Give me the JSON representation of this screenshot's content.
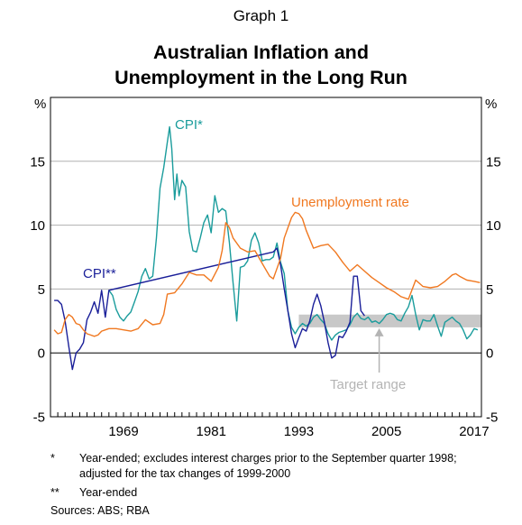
{
  "header": {
    "supertitle": "Graph 1",
    "title_line1": "Australian Inflation and",
    "title_line2": "Unemployment in the Long Run"
  },
  "colors": {
    "cpi_yearended_excl": "#1a9c9c",
    "cpi_yearended": "#1a1f99",
    "unemployment": "#f07820",
    "target_band": "#c8c8c8",
    "annotation": "#b4b4b4",
    "gridline": "#b0b0b0"
  },
  "chart_data": {
    "type": "line",
    "x_ticks": [
      "1969",
      "1981",
      "1993",
      "2005",
      "2017"
    ],
    "y_ticks": [
      "-5",
      "0",
      "5",
      "10",
      "15"
    ],
    "xlim": [
      1959,
      2018
    ],
    "ylim": [
      -5,
      20
    ],
    "left_unit": "%",
    "right_unit": "%",
    "grid": true,
    "target_band": {
      "low": 2,
      "high": 3,
      "from": 1993,
      "to": 2018
    },
    "annotations": {
      "cpi_star_label": "CPI*",
      "cpi_dstar_label": "CPI**",
      "unemp_label": "Unemployment rate",
      "target_label": "Target range"
    },
    "series": [
      {
        "name": "CPI*",
        "points": [
          [
            1967.0,
            4.9
          ],
          [
            1967.5,
            4.5
          ],
          [
            1968.0,
            3.4
          ],
          [
            1968.5,
            2.8
          ],
          [
            1969.0,
            2.5
          ],
          [
            1969.5,
            2.9
          ],
          [
            1970.0,
            3.2
          ],
          [
            1970.5,
            4.0
          ],
          [
            1971.0,
            4.8
          ],
          [
            1971.5,
            6.0
          ],
          [
            1972.0,
            6.6
          ],
          [
            1972.5,
            5.8
          ],
          [
            1973.0,
            6.0
          ],
          [
            1973.5,
            9.0
          ],
          [
            1974.0,
            12.9
          ],
          [
            1974.5,
            14.5
          ],
          [
            1975.0,
            16.5
          ],
          [
            1975.3,
            17.7
          ],
          [
            1975.6,
            16.0
          ],
          [
            1976.0,
            12.0
          ],
          [
            1976.3,
            14.0
          ],
          [
            1976.6,
            12.3
          ],
          [
            1977.0,
            13.5
          ],
          [
            1977.5,
            13.0
          ],
          [
            1978.0,
            9.5
          ],
          [
            1978.5,
            8.0
          ],
          [
            1979.0,
            7.9
          ],
          [
            1979.5,
            9.0
          ],
          [
            1980.0,
            10.2
          ],
          [
            1980.5,
            10.8
          ],
          [
            1981.0,
            9.4
          ],
          [
            1981.5,
            12.3
          ],
          [
            1982.0,
            11.0
          ],
          [
            1982.5,
            11.3
          ],
          [
            1983.0,
            11.1
          ],
          [
            1983.5,
            8.6
          ],
          [
            1984.0,
            5.5
          ],
          [
            1984.5,
            2.5
          ],
          [
            1985.0,
            6.7
          ],
          [
            1985.5,
            6.8
          ],
          [
            1986.0,
            7.2
          ],
          [
            1986.5,
            8.8
          ],
          [
            1987.0,
            9.4
          ],
          [
            1987.5,
            8.6
          ],
          [
            1988.0,
            7.2
          ],
          [
            1988.5,
            7.3
          ],
          [
            1989.0,
            7.3
          ],
          [
            1989.5,
            7.5
          ],
          [
            1990.0,
            8.6
          ],
          [
            1990.5,
            7.1
          ],
          [
            1991.0,
            6.2
          ],
          [
            1991.5,
            3.3
          ],
          [
            1992.0,
            2.0
          ],
          [
            1992.5,
            1.5
          ],
          [
            1993.0,
            2.0
          ],
          [
            1993.5,
            2.3
          ],
          [
            1994.0,
            2.1
          ],
          [
            1994.5,
            2.3
          ],
          [
            1995.0,
            2.8
          ],
          [
            1995.5,
            3.0
          ],
          [
            1996.0,
            2.6
          ],
          [
            1996.5,
            2.3
          ],
          [
            1997.0,
            1.5
          ],
          [
            1997.5,
            1.0
          ],
          [
            1998.0,
            1.4
          ],
          [
            1998.5,
            1.6
          ],
          [
            1999.0,
            1.7
          ],
          [
            1999.5,
            1.8
          ],
          [
            2000.0,
            2.2
          ],
          [
            2000.5,
            2.8
          ],
          [
            2001.0,
            3.1
          ],
          [
            2001.5,
            2.7
          ],
          [
            2002.0,
            2.6
          ],
          [
            2002.5,
            2.8
          ],
          [
            2003.0,
            2.4
          ],
          [
            2003.5,
            2.5
          ],
          [
            2004.0,
            2.3
          ],
          [
            2004.5,
            2.6
          ],
          [
            2005.0,
            3.0
          ],
          [
            2005.5,
            3.1
          ],
          [
            2006.0,
            3.0
          ],
          [
            2006.5,
            2.6
          ],
          [
            2007.0,
            2.5
          ],
          [
            2007.5,
            3.1
          ],
          [
            2008.0,
            3.6
          ],
          [
            2008.5,
            4.5
          ],
          [
            2009.0,
            3.0
          ],
          [
            2009.5,
            1.8
          ],
          [
            2010.0,
            2.6
          ],
          [
            2010.5,
            2.5
          ],
          [
            2011.0,
            2.5
          ],
          [
            2011.5,
            3.0
          ],
          [
            2012.0,
            2.1
          ],
          [
            2012.5,
            1.3
          ],
          [
            2013.0,
            2.4
          ],
          [
            2013.5,
            2.6
          ],
          [
            2014.0,
            2.8
          ],
          [
            2014.5,
            2.5
          ],
          [
            2015.0,
            2.3
          ],
          [
            2015.5,
            1.8
          ],
          [
            2016.0,
            1.1
          ],
          [
            2016.5,
            1.4
          ],
          [
            2017.0,
            1.9
          ],
          [
            2017.5,
            1.8
          ]
        ]
      },
      {
        "name": "CPI**",
        "points": [
          [
            1959.5,
            4.1
          ],
          [
            1960.0,
            4.1
          ],
          [
            1960.5,
            3.8
          ],
          [
            1961.0,
            2.5
          ],
          [
            1961.5,
            0.5
          ],
          [
            1962.0,
            -1.3
          ],
          [
            1962.5,
            0.0
          ],
          [
            1963.0,
            0.3
          ],
          [
            1963.5,
            0.8
          ],
          [
            1964.0,
            2.6
          ],
          [
            1964.5,
            3.2
          ],
          [
            1965.0,
            4.0
          ],
          [
            1965.5,
            3.1
          ],
          [
            1966.0,
            4.9
          ],
          [
            1966.5,
            2.8
          ],
          [
            1967.0,
            4.9
          ],
          [
            1989.5,
            7.9
          ],
          [
            1990.0,
            8.2
          ],
          [
            1990.5,
            6.9
          ],
          [
            1991.0,
            5.0
          ],
          [
            1991.5,
            3.3
          ],
          [
            1992.0,
            1.5
          ],
          [
            1992.5,
            0.4
          ],
          [
            1993.0,
            1.2
          ],
          [
            1993.5,
            1.9
          ],
          [
            1994.0,
            1.7
          ],
          [
            1994.5,
            2.5
          ],
          [
            1995.0,
            3.8
          ],
          [
            1995.5,
            4.6
          ],
          [
            1996.0,
            3.7
          ],
          [
            1996.5,
            2.4
          ],
          [
            1997.0,
            0.8
          ],
          [
            1997.5,
            -0.4
          ],
          [
            1998.0,
            -0.2
          ],
          [
            1998.5,
            1.3
          ],
          [
            1999.0,
            1.2
          ],
          [
            1999.5,
            1.7
          ],
          [
            2000.0,
            2.4
          ],
          [
            2000.5,
            6.0
          ],
          [
            2001.0,
            6.0
          ],
          [
            2001.5,
            3.3
          ],
          [
            2002.0,
            2.9
          ]
        ]
      },
      {
        "name": "Unemployment rate",
        "points": [
          [
            1959.5,
            1.8
          ],
          [
            1960.0,
            1.5
          ],
          [
            1960.5,
            1.6
          ],
          [
            1961.0,
            2.6
          ],
          [
            1961.5,
            3.0
          ],
          [
            1962.0,
            2.8
          ],
          [
            1962.5,
            2.3
          ],
          [
            1963.0,
            2.2
          ],
          [
            1963.5,
            1.8
          ],
          [
            1964.0,
            1.5
          ],
          [
            1964.5,
            1.4
          ],
          [
            1965.0,
            1.3
          ],
          [
            1965.5,
            1.4
          ],
          [
            1966.0,
            1.7
          ],
          [
            1966.5,
            1.8
          ],
          [
            1967.0,
            1.9
          ],
          [
            1968.0,
            1.9
          ],
          [
            1969.0,
            1.8
          ],
          [
            1970.0,
            1.7
          ],
          [
            1971.0,
            1.9
          ],
          [
            1972.0,
            2.6
          ],
          [
            1973.0,
            2.2
          ],
          [
            1974.0,
            2.3
          ],
          [
            1974.5,
            3.0
          ],
          [
            1975.0,
            4.6
          ],
          [
            1976.0,
            4.7
          ],
          [
            1977.0,
            5.4
          ],
          [
            1978.0,
            6.3
          ],
          [
            1979.0,
            6.1
          ],
          [
            1980.0,
            6.1
          ],
          [
            1981.0,
            5.6
          ],
          [
            1982.0,
            6.7
          ],
          [
            1982.5,
            8.0
          ],
          [
            1983.0,
            10.2
          ],
          [
            1983.5,
            9.8
          ],
          [
            1984.0,
            9.0
          ],
          [
            1985.0,
            8.2
          ],
          [
            1986.0,
            7.9
          ],
          [
            1987.0,
            8.0
          ],
          [
            1988.0,
            7.0
          ],
          [
            1989.0,
            6.0
          ],
          [
            1989.5,
            5.8
          ],
          [
            1990.0,
            6.6
          ],
          [
            1990.5,
            7.4
          ],
          [
            1991.0,
            9.0
          ],
          [
            1992.0,
            10.6
          ],
          [
            1992.5,
            11.0
          ],
          [
            1993.0,
            10.9
          ],
          [
            1993.5,
            10.5
          ],
          [
            1994.0,
            9.6
          ],
          [
            1995.0,
            8.2
          ],
          [
            1996.0,
            8.4
          ],
          [
            1997.0,
            8.5
          ],
          [
            1998.0,
            7.9
          ],
          [
            1999.0,
            7.1
          ],
          [
            2000.0,
            6.4
          ],
          [
            2001.0,
            6.9
          ],
          [
            2002.0,
            6.4
          ],
          [
            2003.0,
            5.9
          ],
          [
            2004.0,
            5.5
          ],
          [
            2005.0,
            5.1
          ],
          [
            2006.0,
            4.8
          ],
          [
            2007.0,
            4.4
          ],
          [
            2008.0,
            4.2
          ],
          [
            2009.0,
            5.7
          ],
          [
            2010.0,
            5.2
          ],
          [
            2011.0,
            5.1
          ],
          [
            2012.0,
            5.2
          ],
          [
            2013.0,
            5.6
          ],
          [
            2014.0,
            6.1
          ],
          [
            2014.5,
            6.2
          ],
          [
            2015.0,
            6.0
          ],
          [
            2016.0,
            5.7
          ],
          [
            2017.0,
            5.6
          ],
          [
            2017.8,
            5.5
          ]
        ]
      }
    ]
  },
  "notes": [
    {
      "mark": "*",
      "text": "Year-ended; excludes interest charges prior to the September quarter 1998; adjusted for the tax changes of 1999-2000"
    },
    {
      "mark": "**",
      "text": "Year-ended"
    }
  ],
  "sources": "Sources:   ABS; RBA"
}
